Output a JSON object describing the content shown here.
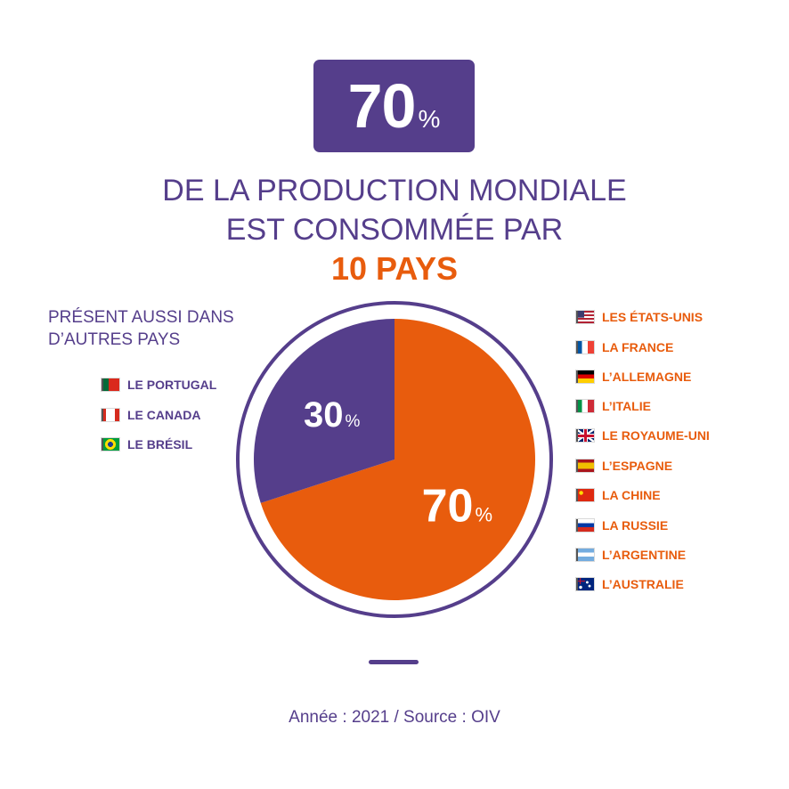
{
  "badge": {
    "value": "70",
    "unit": "%"
  },
  "headline": {
    "line1": "DE LA PRODUCTION MONDIALE",
    "line2": "EST CONSOMMÉE PAR",
    "line3": "10 PAYS"
  },
  "other_countries": {
    "title_line1": "PRÉSENT AUSSI DANS",
    "title_line2": "D’AUTRES PAYS",
    "items": [
      {
        "label": "LE PORTUGAL",
        "flag": "portugal-flag-icon"
      },
      {
        "label": "LE CANADA",
        "flag": "canada-flag-icon"
      },
      {
        "label": "LE BRÉSIL",
        "flag": "brazil-flag-icon"
      }
    ]
  },
  "top_countries": [
    {
      "label": "LES ÉTATS-UNIS",
      "flag": "usa-flag-icon"
    },
    {
      "label": "LA FRANCE",
      "flag": "france-flag-icon"
    },
    {
      "label": "L’ALLEMAGNE",
      "flag": "germany-flag-icon"
    },
    {
      "label": "L’ITALIE",
      "flag": "italy-flag-icon"
    },
    {
      "label": "LE ROYAUME-UNI",
      "flag": "uk-flag-icon"
    },
    {
      "label": "L’ESPAGNE",
      "flag": "spain-flag-icon"
    },
    {
      "label": "LA CHINE",
      "flag": "china-flag-icon"
    },
    {
      "label": "LA RUSSIE",
      "flag": "russia-flag-icon"
    },
    {
      "label": "L’ARGENTINE",
      "flag": "argentina-flag-icon"
    },
    {
      "label": "L’AUSTRALIE",
      "flag": "australia-flag-icon"
    }
  ],
  "chart_data": {
    "type": "pie",
    "title": "",
    "slices": [
      {
        "value": 70,
        "label": "70",
        "unit": "%",
        "color": "#e85c0d"
      },
      {
        "value": 30,
        "label": "30",
        "unit": "%",
        "color": "#553e8b"
      }
    ]
  },
  "colors": {
    "purple": "#553e8b",
    "orange": "#e85c0d"
  },
  "footer": {
    "source": "Année : 2021 / Source : OIV"
  }
}
